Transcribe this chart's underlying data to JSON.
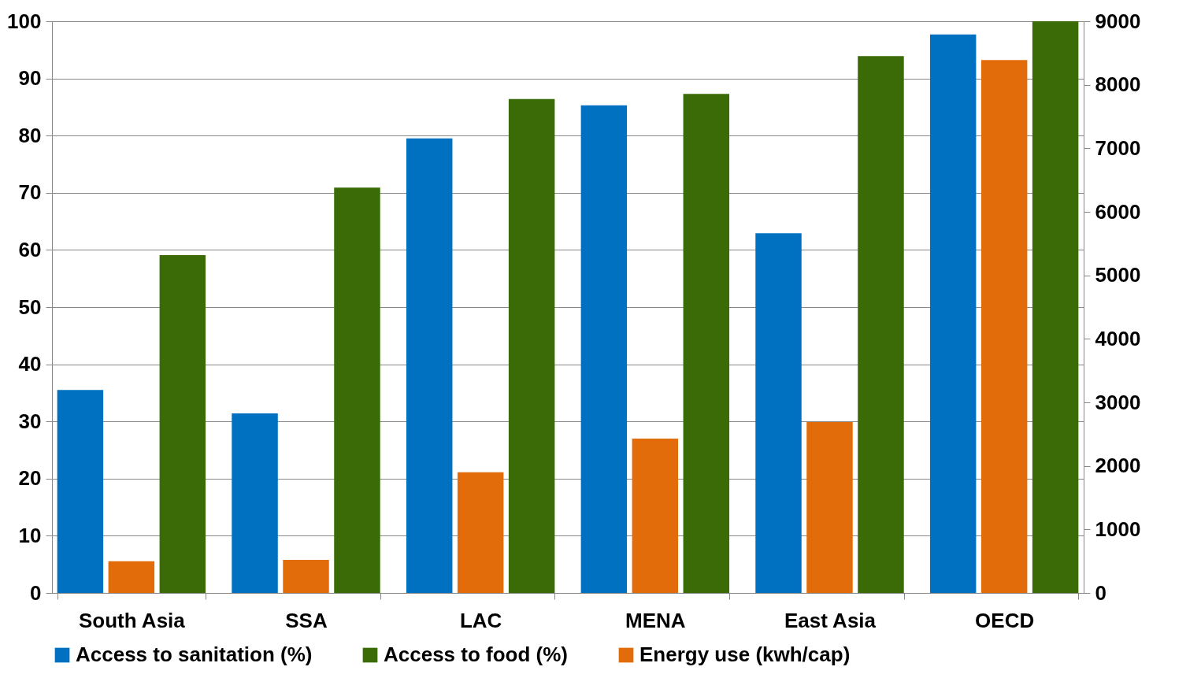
{
  "chart_data": {
    "type": "bar",
    "categories": [
      "South Asia",
      "SSA",
      "LAC",
      "MENA",
      "East Asia",
      "OECD"
    ],
    "series": [
      {
        "name": "Access to sanitation (%)",
        "color": "#0070c0",
        "values": [
          35.5,
          31.4,
          79.5,
          85.3,
          62.9,
          97.7
        ]
      },
      {
        "name": "Access to food (%)",
        "color": "#3a6b06",
        "values": [
          59.1,
          70.9,
          86.4,
          87.3,
          93.9,
          100
        ]
      },
      {
        "name": "Energy use (kwh/cap)",
        "color": "#e36c0a",
        "axis": "y2",
        "values": [
          500,
          520,
          1900,
          2430,
          2690,
          8390
        ]
      }
    ],
    "ylim": [
      0,
      100
    ],
    "yticks": [
      0,
      10,
      20,
      30,
      40,
      50,
      60,
      70,
      80,
      90,
      100
    ],
    "y2lim": [
      0,
      9000
    ],
    "y2ticks": [
      0,
      1000,
      2000,
      3000,
      4000,
      5000,
      6000,
      7000,
      8000,
      9000
    ],
    "grid": "y",
    "legend": "bottom"
  }
}
